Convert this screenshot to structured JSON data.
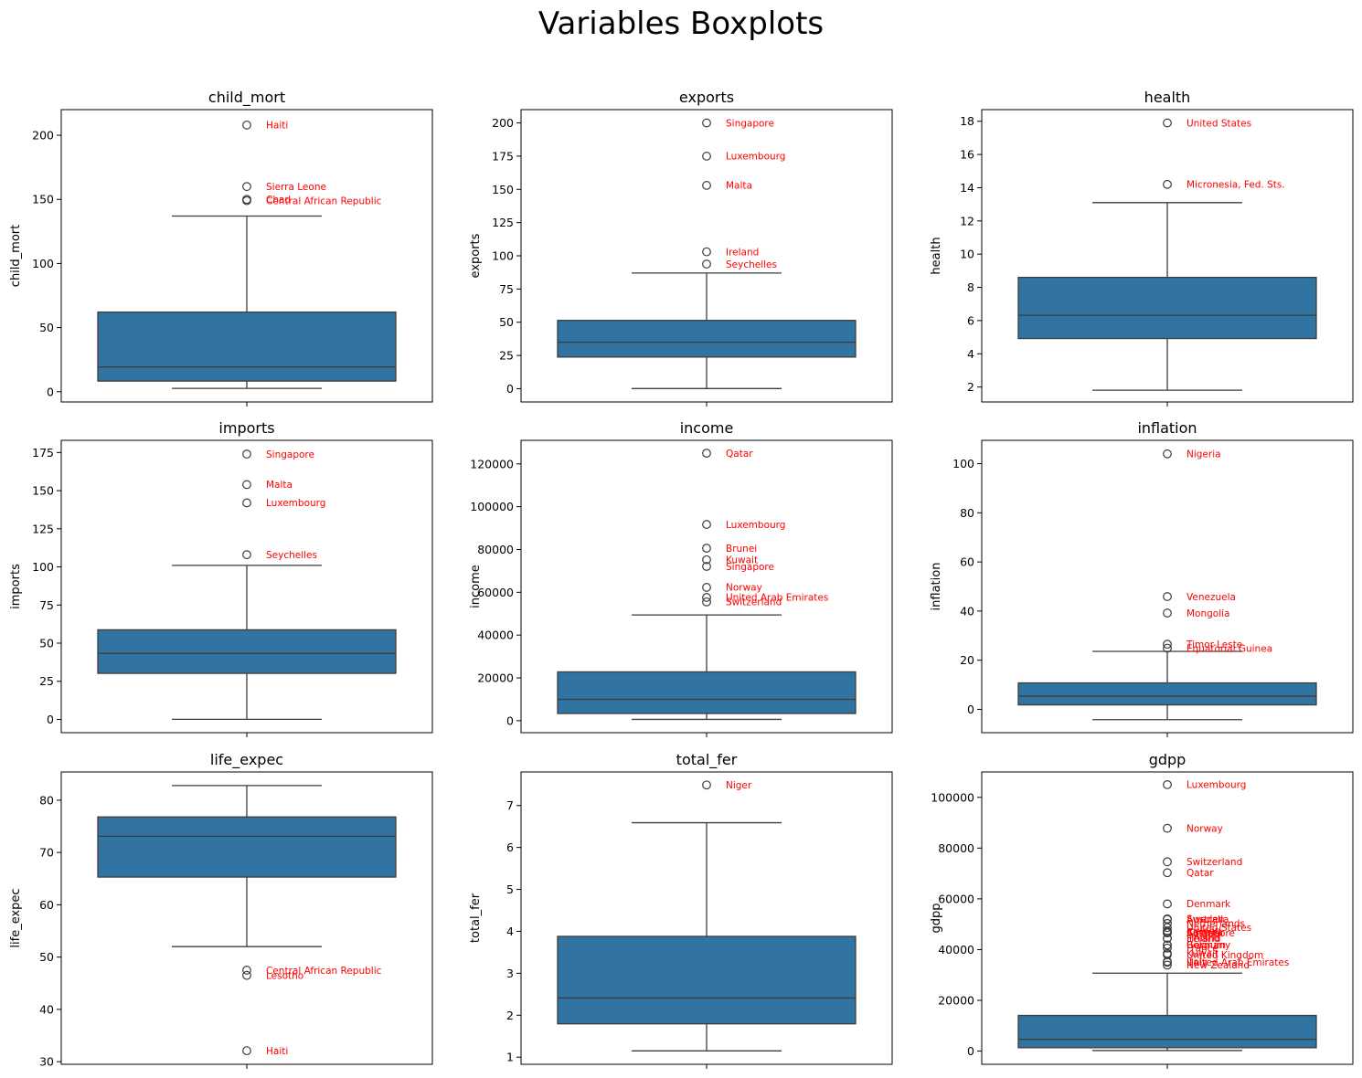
{
  "figure": {
    "title": "Variables Boxplots"
  },
  "colors": {
    "box_fill": "#3274a1",
    "line": "#3d3d3d",
    "outlier_label": "#ff0000",
    "axes": "#000000"
  },
  "chart_data": [
    {
      "type": "box",
      "title": "child_mort",
      "ylabel": "child_mort",
      "ylim": [
        -8,
        220
      ],
      "yticks": [
        0,
        50,
        100,
        150,
        200
      ],
      "stats": {
        "whislo": 2.6,
        "q1": 8.3,
        "med": 19.3,
        "q3": 62.1,
        "whishi": 137
      },
      "outliers": [
        {
          "value": 208,
          "label": "Haiti"
        },
        {
          "value": 160,
          "label": "Sierra Leone"
        },
        {
          "value": 150,
          "label": "Chad"
        },
        {
          "value": 149,
          "label": "Central African Republic"
        }
      ]
    },
    {
      "type": "box",
      "title": "exports",
      "ylabel": "exports",
      "ylim": [
        -10,
        210
      ],
      "yticks": [
        0,
        25,
        50,
        75,
        100,
        125,
        150,
        175,
        200
      ],
      "stats": {
        "whislo": 0.1,
        "q1": 23.8,
        "med": 35,
        "q3": 51.4,
        "whishi": 87
      },
      "outliers": [
        {
          "value": 200,
          "label": "Singapore"
        },
        {
          "value": 175,
          "label": "Luxembourg"
        },
        {
          "value": 153,
          "label": "Malta"
        },
        {
          "value": 103,
          "label": "Ireland"
        },
        {
          "value": 93.8,
          "label": "Seychelles"
        }
      ]
    },
    {
      "type": "box",
      "title": "health",
      "ylabel": "health",
      "ylim": [
        1.1,
        18.7
      ],
      "yticks": [
        2,
        4,
        6,
        8,
        10,
        12,
        14,
        16,
        18
      ],
      "stats": {
        "whislo": 1.81,
        "q1": 4.92,
        "med": 6.32,
        "q3": 8.6,
        "whishi": 13.1
      },
      "outliers": [
        {
          "value": 17.9,
          "label": "United States"
        },
        {
          "value": 14.2,
          "label": "Micronesia, Fed. Sts."
        }
      ]
    },
    {
      "type": "box",
      "title": "imports",
      "ylabel": "imports",
      "ylim": [
        -8.7,
        183
      ],
      "yticks": [
        0,
        25,
        50,
        75,
        100,
        125,
        150,
        175
      ],
      "stats": {
        "whislo": 0.07,
        "q1": 30.2,
        "med": 43.3,
        "q3": 58.75,
        "whishi": 101
      },
      "outliers": [
        {
          "value": 174,
          "label": "Singapore"
        },
        {
          "value": 154,
          "label": "Malta"
        },
        {
          "value": 142,
          "label": "Luxembourg"
        },
        {
          "value": 108,
          "label": "Seychelles"
        }
      ]
    },
    {
      "type": "box",
      "title": "income",
      "ylabel": "income",
      "ylim": [
        -5600,
        131000
      ],
      "yticks": [
        0,
        20000,
        40000,
        60000,
        80000,
        100000,
        120000
      ],
      "stats": {
        "whislo": 609,
        "q1": 3355,
        "med": 9960,
        "q3": 22800,
        "whishi": 49400
      },
      "outliers": [
        {
          "value": 125000,
          "label": "Qatar"
        },
        {
          "value": 91700,
          "label": "Luxembourg"
        },
        {
          "value": 80600,
          "label": "Brunei"
        },
        {
          "value": 75200,
          "label": "Kuwait"
        },
        {
          "value": 72100,
          "label": "Singapore"
        },
        {
          "value": 62300,
          "label": "Norway"
        },
        {
          "value": 57600,
          "label": "United Arab Emirates"
        },
        {
          "value": 55500,
          "label": "Switzerland"
        }
      ]
    },
    {
      "type": "box",
      "title": "inflation",
      "ylabel": "inflation",
      "ylim": [
        -9.5,
        109.5
      ],
      "yticks": [
        0,
        20,
        40,
        60,
        80,
        100
      ],
      "stats": {
        "whislo": -4.21,
        "q1": 1.81,
        "med": 5.39,
        "q3": 10.75,
        "whishi": 23.6
      },
      "outliers": [
        {
          "value": 104,
          "label": "Nigeria"
        },
        {
          "value": 45.9,
          "label": "Venezuela"
        },
        {
          "value": 39.2,
          "label": "Mongolia"
        },
        {
          "value": 26.5,
          "label": "Timor-Leste"
        },
        {
          "value": 24.9,
          "label": "Equatorial Guinea"
        }
      ]
    },
    {
      "type": "box",
      "title": "life_expec",
      "ylabel": "life_expec",
      "ylim": [
        29.5,
        85.4
      ],
      "yticks": [
        30,
        40,
        50,
        60,
        70,
        80
      ],
      "stats": {
        "whislo": 52,
        "q1": 65.3,
        "med": 73.1,
        "q3": 76.8,
        "whishi": 82.8
      },
      "outliers": [
        {
          "value": 47.5,
          "label": "Central African Republic"
        },
        {
          "value": 46.5,
          "label": "Lesotho"
        },
        {
          "value": 32.1,
          "label": "Haiti"
        }
      ]
    },
    {
      "type": "box",
      "title": "total_fer",
      "ylabel": "total_fer",
      "ylim": [
        0.83,
        7.8
      ],
      "yticks": [
        1,
        2,
        3,
        4,
        5,
        6,
        7
      ],
      "stats": {
        "whislo": 1.15,
        "q1": 1.795,
        "med": 2.41,
        "q3": 3.88,
        "whishi": 6.59
      },
      "outliers": [
        {
          "value": 7.49,
          "label": "Niger"
        }
      ]
    },
    {
      "type": "box",
      "title": "gdpp",
      "ylabel": "gdpp",
      "ylim": [
        -5200,
        110000
      ],
      "yticks": [
        0,
        20000,
        40000,
        60000,
        80000,
        100000
      ],
      "stats": {
        "whislo": 231,
        "q1": 1330,
        "med": 4660,
        "q3": 14050,
        "whishi": 30700
      },
      "outliers": [
        {
          "value": 105000,
          "label": "Luxembourg"
        },
        {
          "value": 87800,
          "label": "Norway"
        },
        {
          "value": 74600,
          "label": "Switzerland"
        },
        {
          "value": 70300,
          "label": "Qatar"
        },
        {
          "value": 58000,
          "label": "Denmark"
        },
        {
          "value": 52100,
          "label": "Sweden"
        },
        {
          "value": 51900,
          "label": "Australia"
        },
        {
          "value": 50300,
          "label": "Netherlands"
        },
        {
          "value": 48700,
          "label": "United States"
        },
        {
          "value": 47400,
          "label": "Iceland"
        },
        {
          "value": 46900,
          "label": "Canada"
        },
        {
          "value": 46600,
          "label": "Austria"
        },
        {
          "value": 46600,
          "label": "Singapore"
        },
        {
          "value": 44500,
          "label": "Finland"
        },
        {
          "value": 44400,
          "label": "Ireland"
        },
        {
          "value": 41800,
          "label": "Belgium"
        },
        {
          "value": 41800,
          "label": "Germany"
        },
        {
          "value": 40600,
          "label": "France"
        },
        {
          "value": 38500,
          "label": "Kuwait"
        },
        {
          "value": 38000,
          "label": "United Kingdom"
        },
        {
          "value": 35300,
          "label": "Italy"
        },
        {
          "value": 35000,
          "label": "United Arab Emirates"
        },
        {
          "value": 33900,
          "label": "New Zealand"
        }
      ]
    }
  ]
}
